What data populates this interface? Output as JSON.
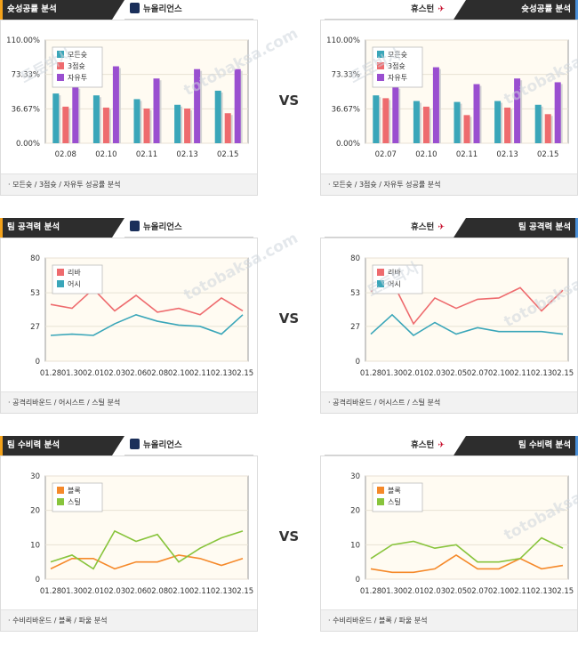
{
  "sections": [
    {
      "title": "슛성공률 분석",
      "left_team": "뉴올리언스",
      "right_team": "휴스턴",
      "vs": "VS",
      "footer": "모든슛 / 3점슛 / 자유투 성공률 분석",
      "colors": [
        "#3aa6b9",
        "#ee6b6e",
        "#9a4fd0"
      ]
    },
    {
      "title": "팀 공격력 분석",
      "left_team": "뉴올리언스",
      "right_team": "휴스턴",
      "vs": "VS",
      "footer": "공격리바운드 / 어시스트 / 스틸 분석",
      "colors": [
        "#ee6b6e",
        "#3aa6b9"
      ]
    },
    {
      "title": "팀 수비력 분석",
      "left_team": "뉴올리언스",
      "right_team": "휴스턴",
      "vs": "VS",
      "footer": "수비리바운드 / 블록 / 파울 분석",
      "colors": [
        "#f5892a",
        "#88c43c"
      ]
    }
  ],
  "watermark": [
    "토토박사",
    "totobaksa.com"
  ],
  "chart_data": [
    {
      "type": "bar",
      "team": "뉴올리언스",
      "categories": [
        "02.08",
        "02.10",
        "02.11",
        "02.13",
        "02.15"
      ],
      "ylim": [
        0,
        110
      ],
      "ytick_labels": [
        "110.00%",
        "73.33%",
        "36.67%",
        "0.00%"
      ],
      "ytick_values": [
        110,
        73.33,
        36.67,
        0
      ],
      "legend": "top-left",
      "series": [
        {
          "name": "모든슛",
          "values": [
            53,
            51,
            47,
            41,
            56
          ]
        },
        {
          "name": "3점슛",
          "values": [
            39,
            38,
            37,
            37,
            32
          ]
        },
        {
          "name": "자유투",
          "values": [
            60,
            82,
            69,
            79,
            79
          ]
        }
      ]
    },
    {
      "type": "bar",
      "team": "휴스턴",
      "categories": [
        "02.07",
        "02.10",
        "02.11",
        "02.13",
        "02.15"
      ],
      "ylim": [
        0,
        110
      ],
      "ytick_labels": [
        "110.00%",
        "73.33%",
        "36.67%",
        "0.00%"
      ],
      "ytick_values": [
        110,
        73.33,
        36.67,
        0
      ],
      "legend": "top-left",
      "series": [
        {
          "name": "모든슛",
          "values": [
            51,
            45,
            44,
            45,
            41
          ]
        },
        {
          "name": "3점슛",
          "values": [
            48,
            39,
            30,
            38,
            31
          ]
        },
        {
          "name": "자유투",
          "values": [
            60,
            81,
            63,
            69,
            65
          ]
        }
      ]
    },
    {
      "type": "line",
      "team": "뉴올리언스",
      "x": [
        "01.28",
        "01.30",
        "02.01",
        "02.03",
        "02.06",
        "02.08",
        "02.10",
        "02.11",
        "02.13",
        "02.15"
      ],
      "ylim": [
        0,
        80
      ],
      "yticks": [
        0,
        27,
        53,
        80
      ],
      "legend": "top-left",
      "series": [
        {
          "name": "리바",
          "values": [
            44,
            41,
            56,
            39,
            51,
            38,
            41,
            36,
            49,
            39
          ]
        },
        {
          "name": "어시",
          "values": [
            20,
            21,
            20,
            29,
            36,
            31,
            28,
            27,
            21,
            36
          ]
        }
      ]
    },
    {
      "type": "line",
      "team": "휴스턴",
      "x": [
        "01.28",
        "01.30",
        "02.01",
        "02.03",
        "02.05",
        "02.07",
        "02.10",
        "02.11",
        "02.13",
        "02.15"
      ],
      "ylim": [
        0,
        80
      ],
      "yticks": [
        0,
        27,
        53,
        80
      ],
      "legend": "top-left",
      "series": [
        {
          "name": "리바",
          "values": [
            54,
            62,
            29,
            49,
            41,
            48,
            49,
            57,
            39,
            55
          ]
        },
        {
          "name": "어시",
          "values": [
            21,
            36,
            20,
            30,
            21,
            26,
            23,
            23,
            23,
            21
          ]
        }
      ]
    },
    {
      "type": "line",
      "team": "뉴올리언스",
      "x": [
        "01.28",
        "01.30",
        "02.01",
        "02.03",
        "02.06",
        "02.08",
        "02.10",
        "02.11",
        "02.13",
        "02.15"
      ],
      "ylim": [
        0,
        30
      ],
      "yticks": [
        0,
        10,
        20,
        30
      ],
      "legend": "top-left",
      "series": [
        {
          "name": "블록",
          "values": [
            3,
            6,
            6,
            3,
            5,
            5,
            7,
            6,
            4,
            6
          ]
        },
        {
          "name": "스틸",
          "values": [
            5,
            7,
            3,
            14,
            11,
            13,
            5,
            9,
            12,
            14
          ]
        }
      ]
    },
    {
      "type": "line",
      "team": "휴스턴",
      "x": [
        "01.28",
        "01.30",
        "02.01",
        "02.03",
        "02.05",
        "02.07",
        "02.10",
        "02.11",
        "02.13",
        "02.15"
      ],
      "ylim": [
        0,
        30
      ],
      "yticks": [
        0,
        10,
        20,
        30
      ],
      "legend": "top-left",
      "series": [
        {
          "name": "블록",
          "values": [
            3,
            2,
            2,
            3,
            7,
            3,
            3,
            6,
            3,
            4
          ]
        },
        {
          "name": "스틸",
          "values": [
            6,
            10,
            11,
            9,
            10,
            5,
            5,
            6,
            12,
            9
          ]
        }
      ]
    }
  ]
}
